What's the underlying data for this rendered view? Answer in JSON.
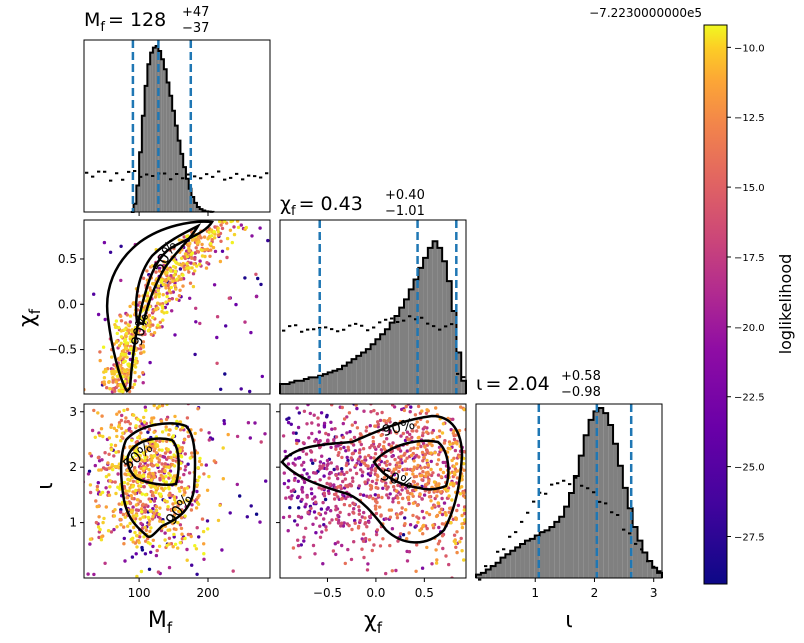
{
  "figure": {
    "offset_text": "−7.2230000000e5",
    "colorbar": {
      "label": "loglikelihood",
      "range": [
        -29.2,
        -9.2
      ],
      "ticks": [
        "−10.0",
        "−12.5",
        "−15.0",
        "−17.5",
        "−20.0",
        "−22.5",
        "−25.0",
        "−27.5"
      ],
      "tick_values": [
        -10,
        -12.5,
        -15,
        -17.5,
        -20,
        -22.5,
        -25,
        -27.5
      ],
      "colormap": "plasma"
    }
  },
  "chart_data": [
    {
      "type": "histogram",
      "panel": "Mf-marginal",
      "title": "M_f = 128 +47 −37",
      "title_parts": {
        "name": "M",
        "sub": "f",
        "value": "= 128",
        "plus": "+47",
        "minus": "−37"
      },
      "xlim": [
        20,
        290
      ],
      "quantiles": [
        91,
        128,
        175
      ],
      "bins": [
        88,
        92,
        96,
        100,
        104,
        108,
        112,
        116,
        120,
        124,
        128,
        132,
        136,
        140,
        144,
        148,
        152,
        156,
        160,
        164,
        168,
        172,
        176,
        180,
        184,
        188,
        192,
        196,
        200,
        204
      ],
      "values": [
        0,
        0.05,
        0.16,
        0.36,
        0.58,
        0.76,
        0.89,
        0.96,
        0.99,
        1.0,
        0.97,
        0.92,
        0.86,
        0.78,
        0.7,
        0.61,
        0.52,
        0.43,
        0.35,
        0.27,
        0.2,
        0.14,
        0.09,
        0.055,
        0.03,
        0.017,
        0.009,
        0.004,
        0.002,
        0.001
      ],
      "prior_level": 0.21
    },
    {
      "type": "histogram",
      "panel": "chi-marginal",
      "title": "χ_f = 0.43 +0.40 −1.01",
      "title_parts": {
        "name": "χ",
        "sub": "f",
        "value": "= 0.43",
        "plus": "+0.40",
        "minus": "−1.01"
      },
      "xlim": [
        -0.99,
        0.93
      ],
      "quantiles": [
        -0.58,
        0.43,
        0.83
      ],
      "values": [
        0.06,
        0.06,
        0.07,
        0.08,
        0.08,
        0.09,
        0.1,
        0.1,
        0.11,
        0.12,
        0.13,
        0.14,
        0.15,
        0.17,
        0.19,
        0.21,
        0.23,
        0.25,
        0.27,
        0.3,
        0.33,
        0.36,
        0.39,
        0.43,
        0.47,
        0.52,
        0.57,
        0.63,
        0.69,
        0.76,
        0.82,
        0.88,
        0.92,
        0.88,
        0.8,
        0.68,
        0.5,
        0.25,
        0.08
      ],
      "prior_level": 0.38
    },
    {
      "type": "scatter",
      "panel": "Mf-vs-chi",
      "xlabel": "",
      "ylabel": "χ_f",
      "xlim": [
        20,
        290
      ],
      "ylim": [
        -0.99,
        0.93
      ],
      "yticks": [
        "0.5",
        "0.0",
        "−0.5"
      ],
      "ytick_values": [
        0.5,
        0.0,
        -0.5
      ],
      "contour_labels": [
        "50%",
        "90%"
      ]
    },
    {
      "type": "histogram",
      "panel": "iota-marginal",
      "title": "ι = 2.04 +0.58 −0.98",
      "title_parts": {
        "name": "ι",
        "value": "= 2.04",
        "plus": "+0.58",
        "minus": "−0.98"
      },
      "xlim": [
        0.0,
        3.14
      ],
      "xlabel": "ι",
      "xticks": [
        "1",
        "2",
        "3"
      ],
      "xtick_values": [
        1,
        2,
        3
      ],
      "quantiles": [
        1.06,
        2.04,
        2.62
      ],
      "values": [
        0.02,
        0.03,
        0.05,
        0.07,
        0.09,
        0.12,
        0.14,
        0.16,
        0.18,
        0.2,
        0.22,
        0.23,
        0.25,
        0.27,
        0.28,
        0.3,
        0.33,
        0.36,
        0.42,
        0.5,
        0.6,
        0.72,
        0.84,
        0.93,
        0.98,
        1.0,
        0.97,
        0.9,
        0.79,
        0.66,
        0.53,
        0.41,
        0.3,
        0.22,
        0.15,
        0.1,
        0.06,
        0.03
      ]
    },
    {
      "type": "scatter",
      "panel": "Mf-vs-iota",
      "xlabel": "M_f",
      "ylabel": "ι",
      "xlim": [
        20,
        290
      ],
      "ylim": [
        0.0,
        3.14
      ],
      "xticks": [
        "100",
        "200"
      ],
      "xtick_values": [
        100,
        200
      ],
      "yticks": [
        "1",
        "2",
        "3"
      ],
      "ytick_values": [
        1,
        2,
        3
      ],
      "contour_labels": [
        "50%",
        "90%"
      ]
    },
    {
      "type": "scatter",
      "panel": "chi-vs-iota",
      "xlabel": "χ_f",
      "xlim": [
        -0.99,
        0.93
      ],
      "ylim": [
        0.0,
        3.14
      ],
      "xticks": [
        "−0.5",
        "0.0",
        "0.5"
      ],
      "xtick_values": [
        -0.5,
        0.0,
        0.5
      ],
      "contour_labels": [
        "90%",
        "50%"
      ]
    }
  ]
}
